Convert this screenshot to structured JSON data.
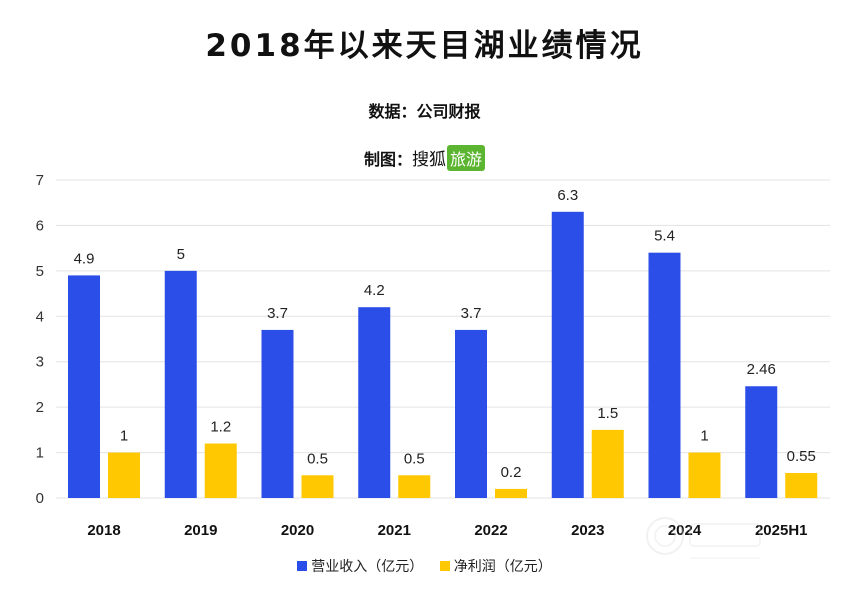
{
  "header": {
    "title": "2018年以来天目湖业绩情况",
    "source_label": "数据：",
    "source_value": "公司财报",
    "maker_label": "制图：",
    "maker_brand": "搜狐",
    "maker_badge": "旅游"
  },
  "colors": {
    "revenue": "#2c4ee8",
    "profit": "#ffc800",
    "grid": "#e3e3e3",
    "badge": "#5cb531"
  },
  "chart_data": {
    "type": "bar",
    "title": "2018年以来天目湖业绩情况",
    "categories": [
      "2018",
      "2019",
      "2020",
      "2021",
      "2022",
      "2023",
      "2024",
      "2025H1"
    ],
    "series": [
      {
        "name": "营业收入（亿元）",
        "values": [
          4.9,
          5,
          3.7,
          4.2,
          3.7,
          6.3,
          5.4,
          2.46
        ],
        "labels": [
          "4.9",
          "5",
          "3.7",
          "4.2",
          "3.7",
          "6.3",
          "5.4",
          "2.46"
        ]
      },
      {
        "name": "净利润（亿元）",
        "values": [
          1,
          1.2,
          0.5,
          0.5,
          0.2,
          1.5,
          1,
          0.55
        ],
        "labels": [
          "1",
          "1.2",
          "0.5",
          "0.5",
          "0.2",
          "1.5",
          "1",
          "0.55"
        ]
      }
    ],
    "ylim": [
      0,
      7
    ],
    "yticks": [
      "0",
      "1",
      "2",
      "3",
      "4",
      "5",
      "6",
      "7"
    ],
    "grid": true,
    "legend_position": "bottom"
  }
}
